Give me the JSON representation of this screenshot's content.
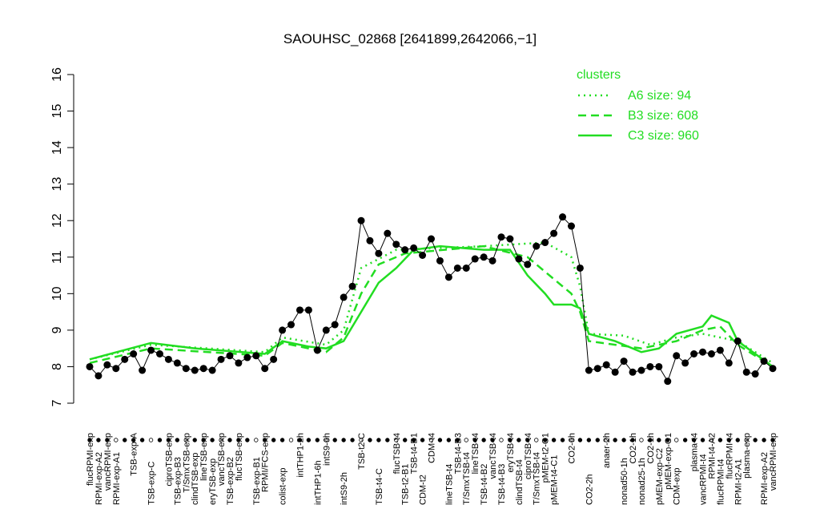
{
  "chart_data": {
    "type": "line",
    "title": "SAOUHSC_02868 [2641899,2642066,−1]",
    "categories": [
      "flucRPMI-exp",
      "RPMI-exp-A2",
      "vancRPMI-exp",
      "RPMI-exp-A1",
      null,
      "TSB-exp-A",
      null,
      "TSB-exp-C",
      null,
      "ciproTSB-exp",
      "TSB-exp-B3",
      "T/SmxTSB-exp",
      "clindTSB-exp",
      "lineTSB-exp",
      "eryTSB-exp",
      "vancTSB-exp",
      "TSB-exp-B2",
      "flucTSB-exp",
      null,
      "TSB-exp-B1",
      "RPMI/FCS-exp",
      null,
      "colist-exp",
      null,
      "intTHP1-2h",
      null,
      "intTHP1-6h",
      "intS9-6h",
      null,
      "intS9-2h",
      null,
      "TSB-t2-C",
      null,
      "TSB-t4-C",
      null,
      "flucTSB-t4",
      "TSB-t2-B1",
      "TSB-t4-B1",
      "CDM-t2",
      "CDM-t4",
      null,
      "lineTSB-t4",
      "TSB-t4-B3",
      "T/SmxTSB-t4",
      "lineTSB-t4",
      "TSB-t4-B2",
      "vancTSB-t4",
      "TSB-t4-B3",
      "eryTSB-t4",
      "clindTSB-t4",
      "ciproTSB-t4",
      "T/SmxTSB-t4",
      "pMEM-t2-C1",
      "pMEM-t4-C1",
      null,
      "CO2-6h",
      null,
      "CO2-2h",
      null,
      "anaer-2h",
      null,
      "nonad50-1h",
      "CO2-1h",
      "nonad25-1h",
      "CO2-1h",
      "pMEM-exp-C2",
      "pMEM-exp-C1",
      "CDM-exp",
      null,
      "plasma-t4",
      "vancRPMI-t4",
      "RPMI-t4-A2",
      "flucRPMI-t4",
      "flucRPMI-t4",
      "RPMI-t2-A1",
      "plasma-exp",
      null,
      "RPMI-exp-A2",
      "vancRPMI-exp"
    ],
    "values": [
      8.0,
      7.75,
      8.05,
      7.95,
      8.2,
      8.35,
      7.9,
      8.45,
      8.35,
      8.2,
      8.1,
      7.95,
      7.9,
      7.95,
      7.9,
      8.2,
      8.3,
      8.1,
      8.25,
      8.3,
      7.95,
      8.2,
      9.0,
      9.15,
      9.55,
      9.55,
      8.45,
      9.0,
      9.15,
      9.9,
      10.2,
      12.0,
      11.45,
      11.1,
      11.65,
      11.35,
      11.2,
      11.25,
      11.05,
      11.5,
      10.9,
      10.45,
      10.7,
      10.7,
      10.95,
      11.0,
      10.9,
      11.55,
      11.5,
      10.95,
      10.8,
      11.3,
      11.4,
      11.65,
      12.1,
      11.85,
      10.7,
      7.9,
      7.95,
      8.05,
      7.85,
      8.15,
      7.85,
      7.9,
      8.0,
      8.0,
      7.6,
      8.3,
      8.1,
      8.35,
      8.4,
      8.35,
      8.45,
      8.1,
      8.7,
      7.85,
      7.8,
      8.15,
      7.95
    ],
    "color": "#000000",
    "xlim": [
      0,
      78
    ],
    "ylim": [
      7,
      16
    ],
    "yticks": [
      7,
      8,
      9,
      10,
      11,
      12,
      13,
      14,
      15,
      16
    ],
    "legend_title": "clusters",
    "legend": "top-right",
    "series": [
      {
        "name": "A6 size: 94",
        "color": "#22dd22",
        "linestyle": "dotted",
        "x": [
          0,
          7,
          20,
          22,
          27,
          29,
          31,
          35,
          45,
          52,
          55,
          56,
          57,
          61,
          64,
          67,
          70,
          74,
          78
        ],
        "values": [
          8.2,
          8.6,
          8.4,
          8.8,
          8.6,
          9.0,
          10.7,
          11.2,
          11.3,
          11.4,
          11.0,
          10.2,
          8.9,
          8.85,
          8.6,
          8.8,
          8.9,
          8.7,
          8.1
        ]
      },
      {
        "name": "B3 size: 608",
        "color": "#22dd22",
        "linestyle": "dashed",
        "x": [
          0,
          7,
          20,
          22,
          27,
          29,
          31,
          33,
          36,
          45,
          50,
          52,
          55,
          56,
          57,
          63,
          67,
          70,
          72,
          74,
          78
        ],
        "values": [
          8.1,
          8.5,
          8.3,
          8.65,
          8.4,
          8.8,
          10.0,
          10.8,
          11.1,
          11.3,
          11.0,
          10.6,
          10.0,
          9.5,
          8.7,
          8.5,
          8.7,
          9.0,
          9.1,
          8.6,
          8.0
        ]
      },
      {
        "name": "C3 size: 960",
        "color": "#22dd22",
        "linestyle": "solid",
        "x": [
          0,
          7,
          12,
          20,
          22,
          25,
          27,
          29,
          31,
          33,
          35,
          37,
          40,
          45,
          48,
          50,
          52,
          53,
          55,
          56,
          57,
          60,
          63,
          65,
          67,
          70,
          71,
          73,
          74,
          78
        ],
        "values": [
          8.2,
          8.65,
          8.5,
          8.35,
          8.7,
          8.55,
          8.5,
          8.7,
          9.5,
          10.3,
          10.7,
          11.2,
          11.3,
          11.2,
          11.2,
          10.5,
          10.0,
          9.7,
          9.7,
          9.6,
          8.9,
          8.7,
          8.4,
          8.5,
          8.9,
          9.1,
          9.4,
          9.2,
          8.7,
          8.0
        ]
      }
    ]
  }
}
